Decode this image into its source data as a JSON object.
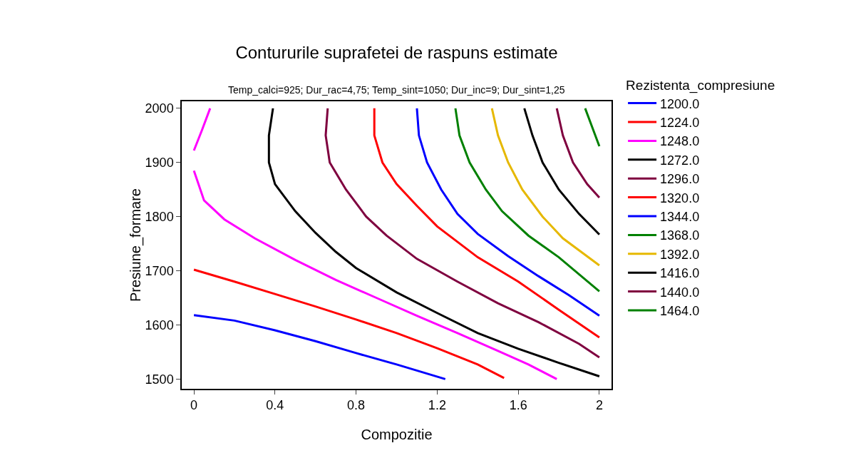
{
  "chart_data": {
    "type": "line",
    "title": "Contururile suprafetei de raspuns estimate",
    "subtitle": "Temp_calci=925; Dur_rac=4,75; Temp_sint=1050; Dur_inc=9; Dur_sint=1,25",
    "xlabel": "Compozitie",
    "ylabel": "Presiune_formare",
    "legend_title": "Rezistenta_compresiune",
    "legend": "right",
    "grid": false,
    "marker": "none",
    "line_style": "solid",
    "xlim": [
      -0.06,
      2.06
    ],
    "xticks": [
      0,
      0.4,
      0.8,
      1.2,
      1.6,
      2
    ],
    "ylim": [
      1482,
      2013
    ],
    "yticks": [
      1500,
      1600,
      1700,
      1800,
      1900,
      2000
    ],
    "series": [
      {
        "name": "1200.0",
        "color": "#0000ff",
        "x": [
          0,
          0.2,
          0.4,
          0.6,
          0.8,
          1.0,
          1.24
        ],
        "values": [
          1618,
          1608,
          1590,
          1570,
          1548,
          1527,
          1500
        ]
      },
      {
        "name": "1224.0",
        "color": "#ff0000",
        "x": [
          0,
          0.2,
          0.4,
          0.6,
          0.8,
          1.0,
          1.2,
          1.4,
          1.53
        ],
        "values": [
          1702,
          1680,
          1657,
          1634,
          1610,
          1585,
          1557,
          1527,
          1502
        ]
      },
      {
        "name": "1248.0",
        "color": "#ff00ff",
        "x": [
          0.08,
          0.04,
          0,
          null,
          0,
          0.05,
          0.15,
          0.3,
          0.5,
          0.7,
          0.9,
          1.1,
          1.3,
          1.5,
          1.65,
          1.79
        ],
        "values": [
          2000,
          1960,
          1922,
          null,
          1885,
          1830,
          1795,
          1760,
          1720,
          1683,
          1650,
          1617,
          1585,
          1552,
          1527,
          1500
        ]
      },
      {
        "name": "1272.0",
        "color": "#000000",
        "x": [
          0.39,
          0.37,
          0.37,
          0.4,
          0.5,
          0.6,
          0.7,
          0.8,
          1.0,
          1.2,
          1.4,
          1.6,
          1.8,
          2.0
        ],
        "values": [
          2000,
          1950,
          1900,
          1860,
          1810,
          1770,
          1735,
          1705,
          1660,
          1622,
          1585,
          1556,
          1530,
          1505
        ]
      },
      {
        "name": "1296.0",
        "color": "#7f003f",
        "x": [
          0.66,
          0.65,
          0.67,
          0.75,
          0.85,
          0.95,
          1.1,
          1.3,
          1.5,
          1.7,
          1.9,
          2.0
        ],
        "values": [
          2000,
          1950,
          1900,
          1850,
          1800,
          1765,
          1722,
          1680,
          1640,
          1605,
          1565,
          1540
        ]
      },
      {
        "name": "1320.0",
        "color": "#ff0000",
        "x": [
          0.89,
          0.89,
          0.93,
          1.0,
          1.1,
          1.2,
          1.4,
          1.6,
          1.8,
          2.0
        ],
        "values": [
          2000,
          1950,
          1900,
          1860,
          1820,
          1782,
          1725,
          1680,
          1628,
          1577
        ]
      },
      {
        "name": "1344.0",
        "color": "#0000ff",
        "x": [
          1.1,
          1.11,
          1.15,
          1.22,
          1.3,
          1.4,
          1.55,
          1.7,
          1.85,
          2.0
        ],
        "values": [
          2000,
          1950,
          1900,
          1850,
          1805,
          1768,
          1727,
          1690,
          1655,
          1617
        ]
      },
      {
        "name": "1368.0",
        "color": "#008000",
        "x": [
          1.29,
          1.31,
          1.36,
          1.44,
          1.52,
          1.65,
          1.8,
          2.0
        ],
        "values": [
          2000,
          1950,
          1900,
          1850,
          1810,
          1765,
          1725,
          1662
        ]
      },
      {
        "name": "1392.0",
        "color": "#e6b800",
        "x": [
          1.47,
          1.5,
          1.55,
          1.62,
          1.72,
          1.82,
          2.0
        ],
        "values": [
          2000,
          1950,
          1900,
          1850,
          1800,
          1760,
          1710
        ]
      },
      {
        "name": "1416.0",
        "color": "#000000",
        "x": [
          1.63,
          1.67,
          1.72,
          1.8,
          1.9,
          2.0
        ],
        "values": [
          2000,
          1950,
          1900,
          1850,
          1805,
          1767
        ]
      },
      {
        "name": "1440.0",
        "color": "#7f003f",
        "x": [
          1.79,
          1.82,
          1.87,
          1.94,
          2.0
        ],
        "values": [
          2000,
          1950,
          1900,
          1860,
          1835
        ]
      },
      {
        "name": "1464.0",
        "color": "#008000",
        "x": [
          1.93,
          1.97,
          2.0
        ],
        "values": [
          2000,
          1960,
          1930
        ]
      }
    ]
  }
}
